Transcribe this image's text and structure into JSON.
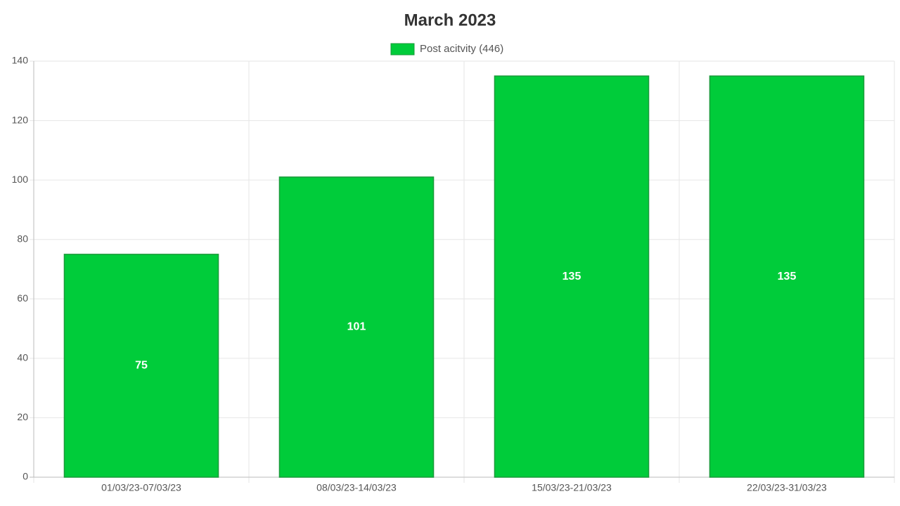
{
  "chart_data": {
    "type": "bar",
    "title": "March 2023",
    "categories": [
      "01/03/23-07/03/23",
      "08/03/23-14/03/23",
      "15/03/23-21/03/23",
      "22/03/23-31/03/23"
    ],
    "series": [
      {
        "name": "Post acitvity (446)",
        "color": "#00cc3a",
        "values": [
          75,
          101,
          135,
          135
        ]
      }
    ],
    "ylim": [
      0,
      140
    ],
    "yticks": [
      0,
      20,
      40,
      60,
      80,
      100,
      120,
      140
    ],
    "grid": true
  }
}
